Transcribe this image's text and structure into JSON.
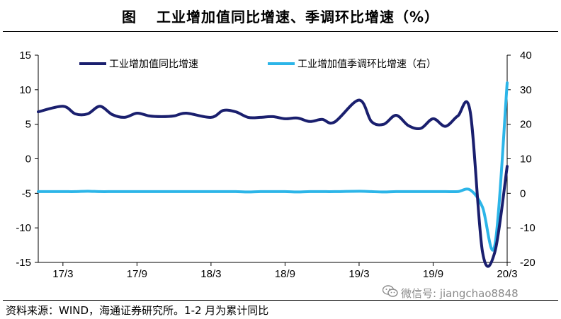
{
  "title": {
    "fig_label": "图",
    "text": "工业增加值同比增速、季调环比增速（%）"
  },
  "source": "资料来源：WIND，海通证券研究所。1-2 月为累计同比",
  "watermark": "微信号: jiangchao8848",
  "chart_data": {
    "type": "line",
    "x_tick_labels": [
      "17/3",
      "17/9",
      "18/3",
      "18/9",
      "19/3",
      "19/9",
      "20/3"
    ],
    "left_axis": {
      "ylim": [
        -15,
        15
      ],
      "ticks": [
        15,
        10,
        5,
        0,
        -5,
        -10,
        -15
      ]
    },
    "right_axis": {
      "ylim": [
        -20,
        40
      ],
      "ticks": [
        40,
        30,
        20,
        10,
        0,
        -10,
        -20
      ]
    },
    "grid": false,
    "legend_position": "top",
    "series": [
      {
        "name": "工业增加值同比增速",
        "axis": "left",
        "color": "#1a1f6e",
        "x": [
          "2017-01",
          "2017-03",
          "2017-04",
          "2017-05",
          "2017-06",
          "2017-07",
          "2017-08",
          "2017-09",
          "2017-10",
          "2017-11",
          "2017-12",
          "2018-01",
          "2018-03",
          "2018-04",
          "2018-05",
          "2018-06",
          "2018-07",
          "2018-08",
          "2018-09",
          "2018-10",
          "2018-11",
          "2018-12",
          "2019-01",
          "2019-03",
          "2019-04",
          "2019-05",
          "2019-06",
          "2019-07",
          "2019-08",
          "2019-09",
          "2019-10",
          "2019-11",
          "2019-12",
          "2020-01",
          "2020-02",
          "2020-03"
        ],
        "values": [
          6.8,
          7.6,
          6.5,
          6.5,
          7.6,
          6.4,
          6.0,
          6.6,
          6.2,
          6.1,
          6.2,
          6.6,
          6.0,
          7.0,
          6.8,
          6.0,
          6.0,
          6.1,
          5.8,
          5.9,
          5.4,
          5.7,
          5.3,
          8.5,
          5.4,
          5.0,
          6.3,
          4.8,
          4.4,
          5.8,
          4.7,
          6.2,
          6.9,
          -13.5,
          -13.5,
          -1.1
        ]
      },
      {
        "name": "工业增加值季调环比增速（右）",
        "axis": "right",
        "color": "#2cb5e8",
        "x": [
          "2017-01",
          "2017-03",
          "2017-04",
          "2017-05",
          "2017-06",
          "2017-07",
          "2017-08",
          "2017-09",
          "2017-10",
          "2017-11",
          "2017-12",
          "2018-01",
          "2018-03",
          "2018-04",
          "2018-05",
          "2018-06",
          "2018-07",
          "2018-08",
          "2018-09",
          "2018-10",
          "2018-11",
          "2018-12",
          "2019-01",
          "2019-03",
          "2019-04",
          "2019-05",
          "2019-06",
          "2019-07",
          "2019-08",
          "2019-09",
          "2019-10",
          "2019-11",
          "2019-12",
          "2020-01",
          "2020-02",
          "2020-03"
        ],
        "values": [
          0.5,
          0.5,
          0.5,
          0.6,
          0.5,
          0.5,
          0.5,
          0.5,
          0.5,
          0.5,
          0.5,
          0.5,
          0.5,
          0.5,
          0.5,
          0.4,
          0.5,
          0.5,
          0.5,
          0.4,
          0.5,
          0.5,
          0.5,
          0.6,
          0.5,
          0.4,
          0.5,
          0.5,
          0.5,
          0.5,
          0.5,
          0.5,
          1.0,
          -4.0,
          -15.0,
          32.0
        ]
      }
    ]
  }
}
